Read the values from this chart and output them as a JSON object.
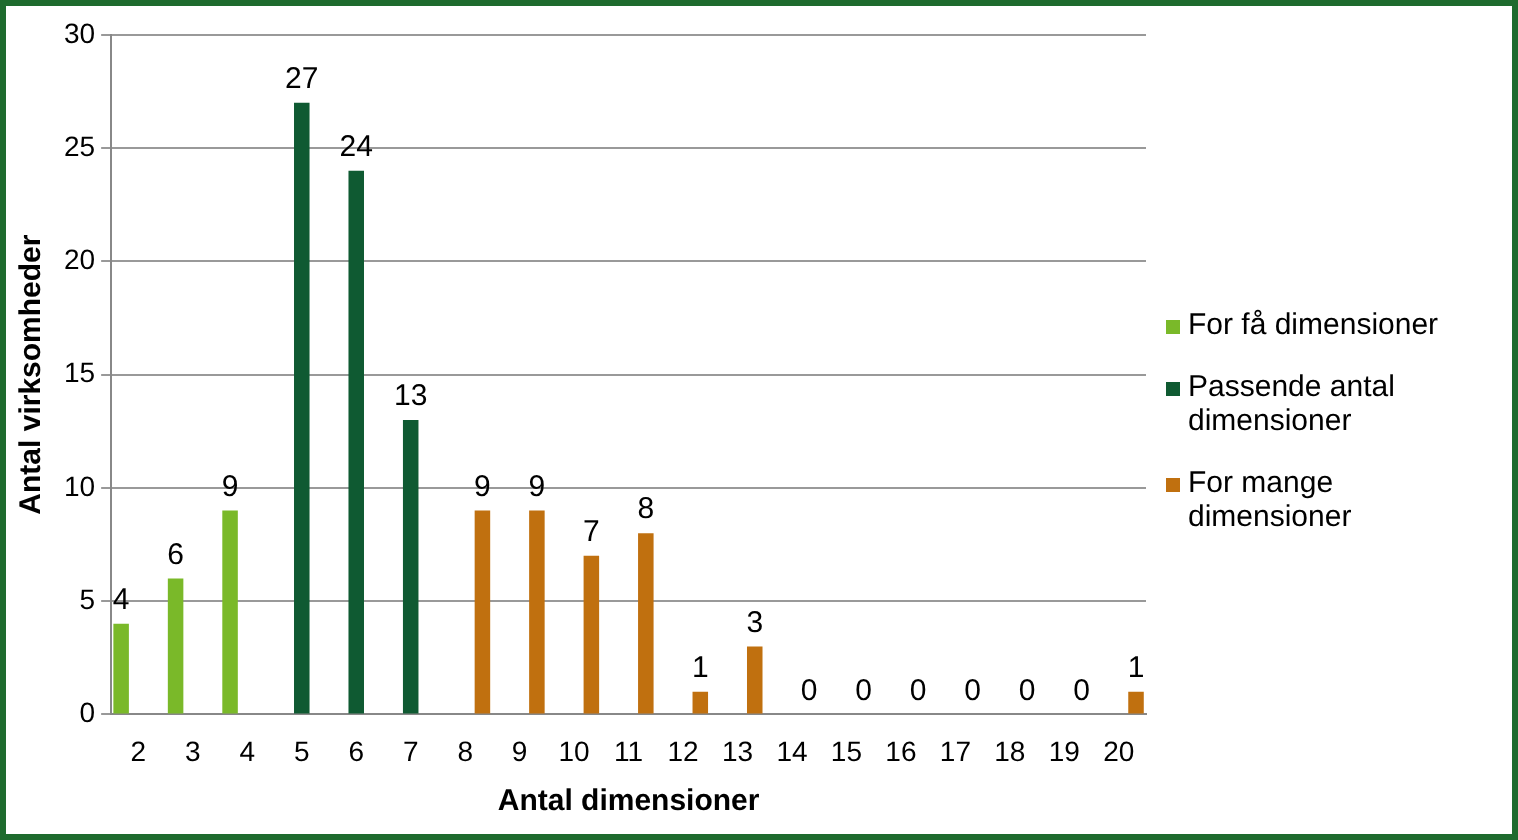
{
  "chart_data": {
    "type": "bar",
    "xlabel": "Antal dimensioner",
    "ylabel": "Antal virksomheder",
    "categories": [
      "2",
      "3",
      "4",
      "5",
      "6",
      "7",
      "8",
      "9",
      "10",
      "11",
      "12",
      "13",
      "14",
      "15",
      "16",
      "17",
      "18",
      "19",
      "20"
    ],
    "series": [
      {
        "name": "For få dimensioner",
        "color": "#7ab929",
        "values": [
          4,
          6,
          9,
          null,
          null,
          null,
          null,
          null,
          null,
          null,
          null,
          null,
          null,
          null,
          null,
          null,
          null,
          null,
          null
        ]
      },
      {
        "name": "Passende antal dimensioner",
        "color": "#0f5a32",
        "values": [
          null,
          null,
          null,
          27,
          24,
          13,
          null,
          null,
          null,
          null,
          null,
          null,
          null,
          null,
          null,
          null,
          null,
          null,
          null
        ]
      },
      {
        "name": "For mange dimensioner",
        "color": "#c0700f",
        "values": [
          null,
          null,
          null,
          null,
          null,
          null,
          9,
          9,
          7,
          8,
          1,
          3,
          0,
          0,
          0,
          0,
          0,
          0,
          1
        ]
      }
    ],
    "ylim": [
      0,
      30
    ],
    "yticks": [
      0,
      5,
      10,
      15,
      20,
      25,
      30
    ],
    "grid": "y",
    "legend": "right",
    "data_labels": true
  }
}
